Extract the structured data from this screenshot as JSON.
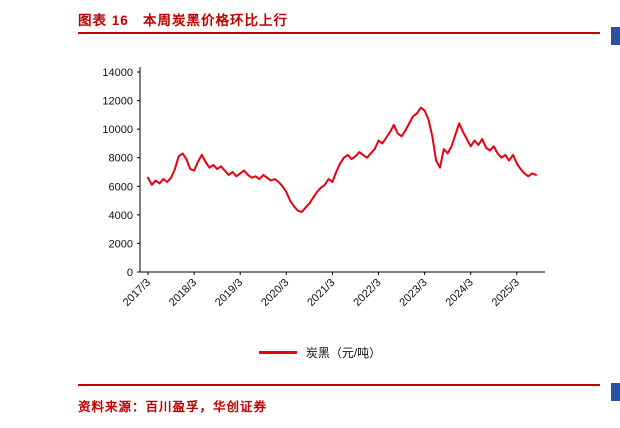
{
  "page": {
    "title": "图表 16   本周炭黑价格环比上行",
    "source": "资料来源：百川盈孚，华创证券"
  },
  "colors": {
    "accent_red": "#c00000",
    "line_red": "#e60012",
    "edge_bar_blue": "#2b52a0",
    "axis_black": "#000000"
  },
  "chart_data": {
    "type": "line",
    "title": "",
    "xlabel": "",
    "ylabel": "",
    "x_unit": "month",
    "x_start": "2017/3",
    "x_end": "2025/8",
    "x_ticks": [
      "2017/3",
      "2018/3",
      "2019/3",
      "2020/3",
      "2021/3",
      "2022/3",
      "2023/3",
      "2024/3",
      "2025/3"
    ],
    "y_ticks": [
      0,
      2000,
      4000,
      6000,
      8000,
      10000,
      12000,
      14000
    ],
    "ylim": [
      0,
      14000
    ],
    "grid": false,
    "legend_position": "bottom",
    "series": [
      {
        "name": "炭黑（元/吨）",
        "color": "#e60012",
        "values": [
          6600,
          6100,
          6400,
          6200,
          6500,
          6300,
          6600,
          7200,
          8100,
          8300,
          7900,
          7200,
          7100,
          7700,
          8200,
          7700,
          7300,
          7500,
          7200,
          7400,
          7100,
          6800,
          7000,
          6700,
          6900,
          7100,
          6800,
          6600,
          6700,
          6500,
          6800,
          6600,
          6400,
          6500,
          6300,
          6000,
          5600,
          5000,
          4600,
          4300,
          4200,
          4500,
          4800,
          5200,
          5600,
          5900,
          6100,
          6500,
          6300,
          7000,
          7600,
          8000,
          8200,
          7900,
          8100,
          8400,
          8200,
          8000,
          8300,
          8600,
          9200,
          9000,
          9400,
          9800,
          10300,
          9700,
          9500,
          9900,
          10400,
          10900,
          11100,
          11500,
          11300,
          10700,
          9500,
          7800,
          7300,
          8600,
          8300,
          8800,
          9600,
          10400,
          9800,
          9300,
          8800,
          9200,
          8900,
          9300,
          8700,
          8500,
          8800,
          8300,
          8000,
          8200,
          7800,
          8200,
          7600,
          7200,
          6900,
          6700,
          6900,
          6800
        ]
      }
    ]
  }
}
